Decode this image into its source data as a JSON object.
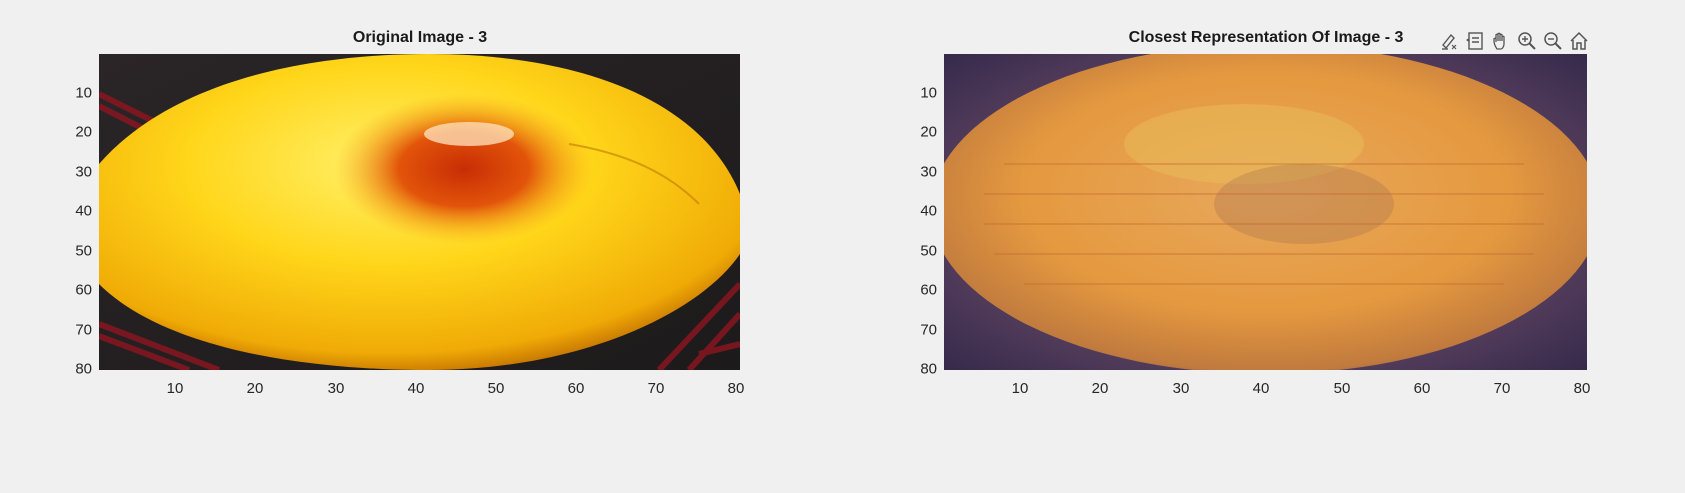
{
  "figure": {
    "left_axes": {
      "title": "Original Image - 3",
      "x_ticks": [
        "10",
        "20",
        "30",
        "40",
        "50",
        "60",
        "70",
        "80"
      ],
      "y_ticks": [
        "10",
        "20",
        "30",
        "40",
        "50",
        "60",
        "70",
        "80"
      ],
      "image_description_colors": {
        "background": "#2b2a2a",
        "fruit": "#f7c10c",
        "spot": "#d84a08"
      }
    },
    "right_axes": {
      "title": "Closest Representation Of Image - 3",
      "x_ticks": [
        "10",
        "20",
        "30",
        "40",
        "50",
        "60",
        "70",
        "80"
      ],
      "y_ticks": [
        "10",
        "20",
        "30",
        "40",
        "50",
        "60",
        "70",
        "80"
      ],
      "image_description_colors": {
        "background": "#453555",
        "fruit": "#e59a4a"
      }
    },
    "toolbar": [
      {
        "name": "brush-icon"
      },
      {
        "name": "data-tips-icon"
      },
      {
        "name": "pan-icon"
      },
      {
        "name": "zoom-in-icon"
      },
      {
        "name": "zoom-out-icon"
      },
      {
        "name": "home-icon"
      }
    ]
  }
}
